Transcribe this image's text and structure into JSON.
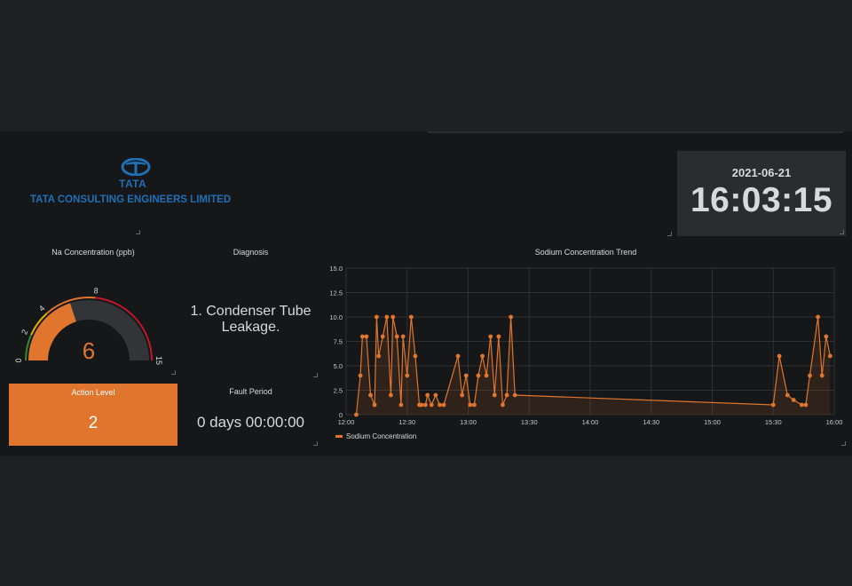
{
  "logo": {
    "mark": "TATA",
    "company": "TATA CONSULTING ENGINEERS LIMITED"
  },
  "clock": {
    "date": "2021-06-21",
    "time": "16:03:15"
  },
  "gauge": {
    "title": "Na Concentration (ppb)",
    "value": "6",
    "min": 0,
    "max": 15,
    "thresholds": [
      "0",
      "2",
      "4",
      "8",
      "15"
    ],
    "colors": {
      "green": "#37872d",
      "yellow": "#e0b400",
      "orange": "#e0752d",
      "red": "#c4162a"
    }
  },
  "action": {
    "title": "Action Level",
    "value": "2"
  },
  "diagnosis": {
    "title": "Diagnosis",
    "text": "1. Condenser Tube Leakage."
  },
  "fault": {
    "title": "Fault Period",
    "value": "0 days 00:00:00"
  },
  "chart_data": {
    "type": "line",
    "title": "Sodium Concentration Trend",
    "xlabel": "",
    "ylabel": "",
    "x_range": [
      "12:00",
      "16:00"
    ],
    "ylim": [
      0,
      15
    ],
    "x_ticks": [
      "12:00",
      "12:30",
      "13:00",
      "13:30",
      "14:00",
      "14:30",
      "15:00",
      "15:30",
      "16:00"
    ],
    "y_ticks": [
      "0",
      "2.5",
      "5.0",
      "7.5",
      "10.0",
      "12.5",
      "15.0"
    ],
    "grid": true,
    "legend": "bottom-left",
    "series": [
      {
        "name": "Sodium Concentration",
        "color": "#e0752d",
        "points": [
          [
            "12:05",
            0
          ],
          [
            "12:07",
            4
          ],
          [
            "12:08",
            8
          ],
          [
            "12:10",
            8
          ],
          [
            "12:12",
            2
          ],
          [
            "12:14",
            1
          ],
          [
            "12:15",
            10
          ],
          [
            "12:16",
            6
          ],
          [
            "12:18",
            8
          ],
          [
            "12:20",
            10
          ],
          [
            "12:22",
            2
          ],
          [
            "12:23",
            10
          ],
          [
            "12:25",
            8
          ],
          [
            "12:27",
            1
          ],
          [
            "12:28",
            8
          ],
          [
            "12:30",
            4
          ],
          [
            "12:32",
            10
          ],
          [
            "12:34",
            6
          ],
          [
            "12:36",
            1
          ],
          [
            "12:37",
            1
          ],
          [
            "12:39",
            1
          ],
          [
            "12:40",
            2
          ],
          [
            "12:42",
            1
          ],
          [
            "12:44",
            2
          ],
          [
            "12:46",
            1
          ],
          [
            "12:48",
            1
          ],
          [
            "12:55",
            6
          ],
          [
            "12:57",
            2
          ],
          [
            "12:59",
            4
          ],
          [
            "13:01",
            1
          ],
          [
            "13:03",
            1
          ],
          [
            "13:05",
            4
          ],
          [
            "13:07",
            6
          ],
          [
            "13:09",
            4
          ],
          [
            "13:11",
            8
          ],
          [
            "13:13",
            2
          ],
          [
            "13:15",
            8
          ],
          [
            "13:17",
            1
          ],
          [
            "13:19",
            2
          ],
          [
            "13:21",
            10
          ],
          [
            "13:23",
            2
          ],
          [
            "15:30",
            1
          ],
          [
            "15:33",
            6
          ],
          [
            "15:37",
            2
          ],
          [
            "15:40",
            1.5
          ],
          [
            "15:44",
            1
          ],
          [
            "15:46",
            1
          ],
          [
            "15:48",
            4
          ],
          [
            "15:52",
            10
          ],
          [
            "15:54",
            4
          ],
          [
            "15:56",
            8
          ],
          [
            "15:58",
            6
          ]
        ]
      }
    ]
  }
}
